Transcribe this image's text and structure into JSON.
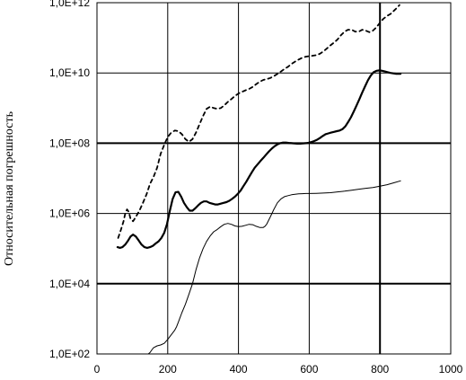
{
  "chart_data": {
    "type": "line",
    "title": "",
    "xlabel": "",
    "ylabel": "Относительная погрешность",
    "x_scale": "linear",
    "y_scale": "log",
    "xlim": [
      0,
      1000
    ],
    "ylim": [
      100,
      1000000000000
    ],
    "x_ticks": [
      0,
      200,
      400,
      600,
      800,
      1000
    ],
    "x_tick_labels": [
      "0",
      "200",
      "400",
      "600",
      "800",
      "1000"
    ],
    "y_ticks": [
      100,
      10000,
      1000000,
      100000000,
      10000000000,
      1000000000000
    ],
    "y_tick_labels": [
      "1,0E+02",
      "1,0E+04",
      "1,0E+06",
      "1,0E+08",
      "1,0E+10",
      "1,0E+12"
    ],
    "grid": true,
    "series": [
      {
        "style": "dashed",
        "color": "#000000",
        "x": [
          60,
          68,
          75,
          80,
          85,
          90,
          95,
          102,
          110,
          120,
          130,
          140,
          150,
          160,
          170,
          180,
          190,
          200,
          210,
          220,
          230,
          240,
          250,
          260,
          270,
          280,
          290,
          300,
          310,
          320,
          330,
          340,
          350,
          360,
          370,
          380,
          390,
          400,
          410,
          420,
          430,
          440,
          450,
          460,
          470,
          480,
          490,
          500,
          510,
          520,
          530,
          540,
          550,
          560,
          570,
          580,
          590,
          600,
          610,
          620,
          630,
          640,
          650,
          660,
          670,
          680,
          690,
          700,
          710,
          720,
          730,
          740,
          750,
          760,
          770,
          780,
          790,
          800,
          810,
          820,
          830,
          840,
          850,
          855
        ],
        "y": [
          200000,
          350000,
          600000,
          1000000,
          1300000,
          1100000,
          700000,
          600000,
          800000,
          1200000,
          2000000,
          3500000,
          7000000,
          11000000,
          20000000,
          50000000,
          90000000,
          150000000,
          200000000,
          230000000,
          220000000,
          180000000,
          130000000,
          110000000,
          130000000,
          200000000,
          350000000,
          600000000,
          950000000,
          1100000000,
          1000000000,
          950000000,
          1000000000,
          1200000000,
          1500000000,
          1800000000,
          2200000000,
          2600000000,
          2900000000,
          3200000000,
          3500000000,
          4000000000,
          4800000000,
          5600000000,
          6300000000,
          6700000000,
          7200000000,
          8100000000,
          9400000000,
          11000000000,
          13000000000,
          15000000000,
          18000000000,
          21000000000,
          24000000000,
          27000000000,
          29000000000,
          30000000000,
          31000000000,
          32000000000,
          35000000000,
          41000000000,
          50000000000,
          61000000000,
          73000000000,
          90000000000,
          120000000000,
          150000000000,
          170000000000,
          170000000000,
          150000000000,
          150000000000,
          170000000000,
          160000000000,
          145000000000,
          160000000000,
          200000000000,
          270000000000,
          350000000000,
          420000000000,
          480000000000,
          600000000000,
          750000000000,
          860000000000
        ]
      },
      {
        "style": "solid-thick",
        "color": "#000000",
        "x": [
          58,
          65,
          72,
          80,
          88,
          95,
          102,
          110,
          118,
          126,
          134,
          142,
          150,
          158,
          166,
          174,
          182,
          190,
          198,
          206,
          214,
          222,
          230,
          238,
          246,
          254,
          262,
          270,
          278,
          286,
          294,
          302,
          310,
          318,
          326,
          334,
          342,
          350,
          358,
          366,
          374,
          382,
          390,
          398,
          406,
          414,
          422,
          430,
          438,
          446,
          454,
          462,
          470,
          478,
          486,
          494,
          502,
          510,
          518,
          526,
          534,
          542,
          550,
          558,
          566,
          574,
          582,
          590,
          598,
          606,
          614,
          622,
          630,
          638,
          646,
          654,
          662,
          670,
          678,
          686,
          694,
          702,
          710,
          718,
          726,
          734,
          742,
          750,
          758,
          766,
          774,
          782,
          790,
          798,
          806,
          814,
          822,
          830,
          838,
          846,
          854,
          858
        ],
        "y": [
          110000,
          105000,
          110000,
          130000,
          170000,
          220000,
          250000,
          220000,
          170000,
          130000,
          110000,
          105000,
          110000,
          120000,
          140000,
          160000,
          200000,
          280000,
          500000,
          1200000,
          2600000,
          4000000,
          4100000,
          3000000,
          2000000,
          1500000,
          1200000,
          1200000,
          1400000,
          1700000,
          2000000,
          2200000,
          2200000,
          2000000,
          1900000,
          1800000,
          1800000,
          1900000,
          2000000,
          2100000,
          2300000,
          2600000,
          3000000,
          3600000,
          4500000,
          6000000,
          8000000,
          11000000,
          15000000,
          20000000,
          25000000,
          31000000,
          38000000,
          47000000,
          58000000,
          70000000,
          82000000,
          92000000,
          100000000,
          104000000,
          104000000,
          102000000,
          100000000,
          98000000,
          97000000,
          97000000,
          98000000,
          100000000,
          103000000,
          108000000,
          115000000,
          125000000,
          140000000,
          160000000,
          180000000,
          190000000,
          200000000,
          210000000,
          220000000,
          230000000,
          250000000,
          300000000,
          400000000,
          550000000,
          800000000,
          1200000000,
          1800000000,
          2800000000,
          4200000000,
          6200000000,
          8500000000,
          10500000000,
          11500000000,
          11800000000,
          11500000000,
          11000000000,
          10500000000,
          10000000000,
          9700000000,
          9500000000,
          9500000000,
          9500000000
        ]
      },
      {
        "style": "solid-thin",
        "color": "#000000",
        "x": [
          140,
          145,
          150,
          155,
          160,
          170,
          180,
          190,
          200,
          210,
          220,
          225,
          230,
          235,
          240,
          250,
          260,
          270,
          280,
          290,
          300,
          310,
          320,
          330,
          340,
          350,
          360,
          370,
          380,
          390,
          400,
          410,
          420,
          430,
          440,
          450,
          460,
          470,
          475,
          480,
          490,
          500,
          510,
          520,
          530,
          540,
          550,
          560,
          570,
          580,
          590,
          600,
          620,
          640,
          660,
          680,
          700,
          720,
          740,
          760,
          780,
          800,
          820,
          840,
          858
        ],
        "y": [
          100,
          100,
          110,
          130,
          150,
          170,
          180,
          200,
          260,
          350,
          480,
          600,
          800,
          1100,
          1500,
          2600,
          5000,
          10000,
          25000,
          55000,
          100000,
          160000,
          230000,
          300000,
          350000,
          420000,
          490000,
          520000,
          490000,
          440000,
          420000,
          430000,
          460000,
          490000,
          480000,
          430000,
          400000,
          400000,
          430000,
          500000,
          800000,
          1300000,
          2000000,
          2600000,
          3000000,
          3200000,
          3400000,
          3500000,
          3600000,
          3650000,
          3700000,
          3700000,
          3750000,
          3800000,
          3900000,
          4100000,
          4300000,
          4600000,
          4900000,
          5200000,
          5500000,
          6000000,
          6600000,
          7500000,
          8500000
        ]
      }
    ]
  }
}
